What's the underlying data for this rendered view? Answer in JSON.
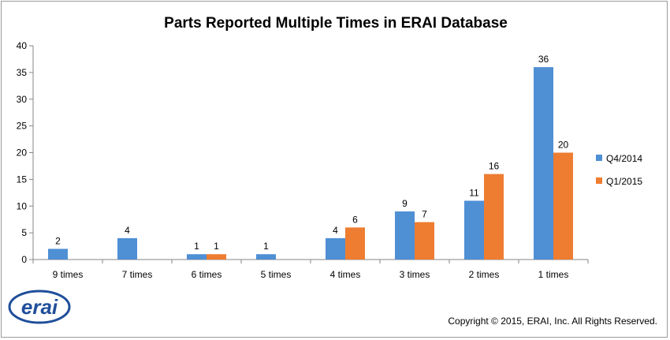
{
  "chart_data": {
    "type": "bar",
    "title": "Parts Reported Multiple Times in ERAI Database",
    "categories": [
      "9 times",
      "7 times",
      "6 times",
      "5 times",
      "4 times",
      "3 times",
      "2 times",
      "1 times"
    ],
    "series": [
      {
        "name": "Q4/2014",
        "color": "#4f8fd4",
        "values": [
          2,
          4,
          1,
          1,
          4,
          9,
          11,
          36
        ]
      },
      {
        "name": "Q1/2015",
        "color": "#ee7d31",
        "values": [
          null,
          null,
          1,
          null,
          6,
          7,
          16,
          20
        ]
      }
    ],
    "ylim": [
      0,
      40
    ],
    "yticks": [
      0,
      5,
      10,
      15,
      20,
      25,
      30,
      35,
      40
    ],
    "grid": false,
    "legend_position": "right"
  },
  "footer": {
    "copyright": "Copyright © 2015, ERAI, Inc.  All Rights Reserved."
  },
  "logo": {
    "text": "erai",
    "color": "#1f4e9a"
  }
}
